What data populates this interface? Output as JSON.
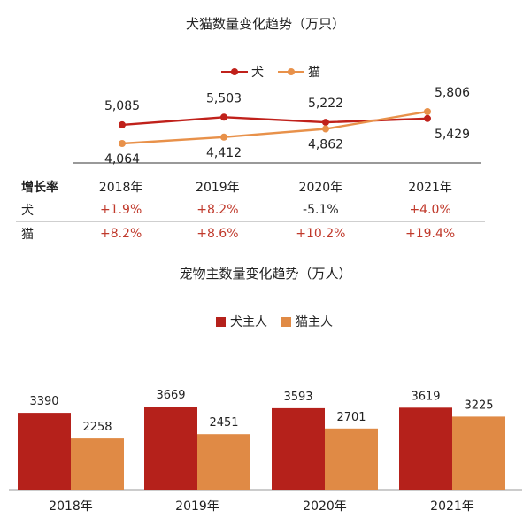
{
  "line_chart": {
    "title": "犬猫数量变化趋势（万只）",
    "legend": [
      {
        "name": "犬",
        "color": "#c0211b"
      },
      {
        "name": "猫",
        "color": "#e8914a"
      }
    ]
  },
  "bar_chart": {
    "title": "宠物主数量变化趋势（万人）",
    "legend": [
      {
        "name": "犬主人",
        "color": "#b5211b"
      },
      {
        "name": "猫主人",
        "color": "#e08a45"
      }
    ]
  },
  "growth_table": {
    "header_label": "增长率",
    "years": [
      "2018年",
      "2019年",
      "2020年",
      "2021年"
    ],
    "rows": [
      {
        "label": "犬",
        "values": [
          "+1.9%",
          "+8.2%",
          "-5.1%",
          "+4.0%"
        ]
      },
      {
        "label": "猫",
        "values": [
          "+8.2%",
          "+8.6%",
          "+10.2%",
          "+19.4%"
        ]
      }
    ]
  },
  "chart_data": [
    {
      "type": "line",
      "title": "犬猫数量变化趋势（万只）",
      "categories": [
        "2018年",
        "2019年",
        "2020年",
        "2021年"
      ],
      "series": [
        {
          "name": "犬",
          "values": [
            5085,
            5503,
            5222,
            5429
          ],
          "labels": [
            "5,085",
            "5,503",
            "5,222",
            "5,429"
          ],
          "color": "#c0211b"
        },
        {
          "name": "猫",
          "values": [
            4064,
            4412,
            4862,
            5806
          ],
          "labels": [
            "4,064",
            "4,412",
            "4,862",
            "5,806"
          ],
          "color": "#e8914a"
        }
      ],
      "legend": "top-center",
      "grid": false
    },
    {
      "type": "bar",
      "title": "宠物主数量变化趋势（万人）",
      "categories": [
        "2018年",
        "2019年",
        "2020年",
        "2021年"
      ],
      "series": [
        {
          "name": "犬主人",
          "values": [
            3390,
            3669,
            3593,
            3619
          ],
          "color": "#b5211b"
        },
        {
          "name": "猫主人",
          "values": [
            2258,
            2451,
            2701,
            3225
          ],
          "color": "#e08a45"
        }
      ],
      "legend": "top-center",
      "grid": false
    }
  ]
}
